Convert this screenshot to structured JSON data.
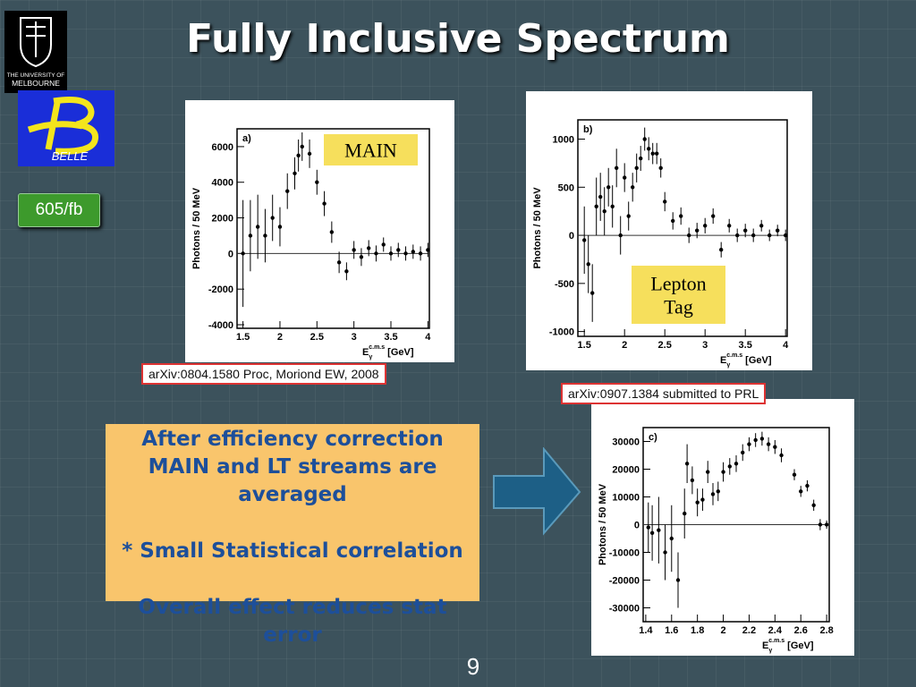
{
  "slide": {
    "title": "Fully Inclusive Spectrum",
    "logo_melbourne": [
      "THE UNIVERSITY OF",
      "MELBOURNE"
    ],
    "logo_belle": "BELLE",
    "badge": "605/fb",
    "caption_a": "arXiv:0804.1580 Proc, Moriond EW, 2008",
    "caption_b": "arXiv:0907.1384 submitted to PRL",
    "note": [
      "After efficiency correction",
      "MAIN and LT streams are averaged",
      "* Small Statistical correlation",
      "Overall effect reduces stat error"
    ],
    "page_number": "9"
  },
  "plots": [
    {
      "label": "a)",
      "tag": [
        "MAIN"
      ],
      "y_label": "Photons / 50 MeV",
      "x_label": [
        "E",
        "γ",
        "c.m.s",
        "[GeV]"
      ],
      "xlim": [
        1.42,
        4.02
      ],
      "ylim": [
        -4200,
        7000
      ],
      "xticks": [
        1.5,
        2,
        2.5,
        3,
        3.5,
        4
      ],
      "yticks": [
        -4000,
        -2000,
        0,
        2000,
        4000,
        6000
      ],
      "x": [
        1.5,
        1.6,
        1.7,
        1.8,
        1.9,
        2.0,
        2.1,
        2.2,
        2.25,
        2.3,
        2.4,
        2.5,
        2.6,
        2.7,
        2.8,
        2.9,
        3.0,
        3.1,
        3.2,
        3.3,
        3.4,
        3.5,
        3.6,
        3.7,
        3.8,
        3.9,
        4.0
      ],
      "values": [
        0,
        1000,
        1500,
        1000,
        2000,
        1500,
        3500,
        4500,
        5500,
        6000,
        5600,
        4000,
        2800,
        1200,
        -500,
        -1000,
        200,
        -200,
        300,
        0,
        500,
        0,
        200,
        0,
        100,
        0,
        200
      ],
      "errors": [
        3000,
        2000,
        1800,
        1500,
        1300,
        1100,
        1000,
        900,
        900,
        800,
        800,
        700,
        700,
        600,
        600,
        500,
        500,
        500,
        450,
        450,
        400,
        400,
        400,
        400,
        400,
        400,
        400
      ]
    },
    {
      "label": "b)",
      "tag": [
        "Lepton",
        "Tag"
      ],
      "y_label": "Photons / 50 MeV",
      "x_label": [
        "E",
        "γ",
        "c.m.s",
        "[GeV]"
      ],
      "xlim": [
        1.42,
        4.02
      ],
      "ylim": [
        -1050,
        1200
      ],
      "xticks": [
        1.5,
        2,
        2.5,
        3,
        3.5,
        4
      ],
      "yticks": [
        -1000,
        -500,
        0,
        500,
        1000
      ],
      "x": [
        1.5,
        1.55,
        1.6,
        1.65,
        1.7,
        1.75,
        1.8,
        1.85,
        1.9,
        1.95,
        2.0,
        2.05,
        2.1,
        2.15,
        2.2,
        2.25,
        2.3,
        2.35,
        2.4,
        2.45,
        2.5,
        2.6,
        2.7,
        2.8,
        2.9,
        3.0,
        3.1,
        3.2,
        3.3,
        3.4,
        3.5,
        3.6,
        3.7,
        3.8,
        3.9,
        4.0
      ],
      "values": [
        -50,
        -300,
        -600,
        300,
        400,
        250,
        500,
        300,
        700,
        0,
        600,
        200,
        500,
        700,
        800,
        1000,
        900,
        850,
        850,
        700,
        350,
        150,
        200,
        0,
        50,
        100,
        200,
        -150,
        100,
        0,
        50,
        0,
        100,
        0,
        50,
        0
      ],
      "errors": [
        350,
        300,
        300,
        300,
        250,
        250,
        200,
        220,
        200,
        200,
        150,
        150,
        150,
        150,
        130,
        120,
        120,
        110,
        110,
        100,
        100,
        90,
        90,
        80,
        80,
        80,
        80,
        80,
        70,
        70,
        70,
        70,
        60,
        60,
        60,
        60
      ]
    },
    {
      "label": "c)",
      "y_label": "Photons / 50 MeV",
      "x_label": [
        "E",
        "γ",
        "c.m.s",
        "[GeV]"
      ],
      "xlim": [
        1.38,
        2.82
      ],
      "ylim": [
        -35000,
        35000
      ],
      "xticks": [
        1.4,
        1.6,
        1.8,
        2,
        2.2,
        2.4,
        2.6,
        2.8
      ],
      "yticks": [
        -30000,
        -20000,
        -10000,
        0,
        10000,
        20000,
        30000
      ],
      "x": [
        1.42,
        1.45,
        1.5,
        1.55,
        1.6,
        1.65,
        1.7,
        1.72,
        1.76,
        1.8,
        1.84,
        1.88,
        1.92,
        1.96,
        2.0,
        2.05,
        2.1,
        2.15,
        2.2,
        2.25,
        2.3,
        2.35,
        2.4,
        2.45,
        2.55,
        2.6,
        2.65,
        2.7,
        2.75,
        2.8
      ],
      "values": [
        -1000,
        -3000,
        -2000,
        -10000,
        -5000,
        -20000,
        4000,
        22000,
        16000,
        8000,
        9000,
        19000,
        11000,
        12000,
        19000,
        21000,
        22000,
        26000,
        29000,
        30500,
        31000,
        29000,
        28000,
        25000,
        18000,
        12000,
        14000,
        7000,
        0,
        0
      ],
      "errors": [
        9000,
        10000,
        12000,
        10000,
        12000,
        10000,
        9000,
        7000,
        5000,
        5000,
        4000,
        4000,
        4000,
        3500,
        3500,
        3000,
        3000,
        3000,
        2500,
        2500,
        2500,
        2500,
        2500,
        2500,
        2000,
        2000,
        2000,
        2000,
        2000,
        1500
      ]
    }
  ]
}
